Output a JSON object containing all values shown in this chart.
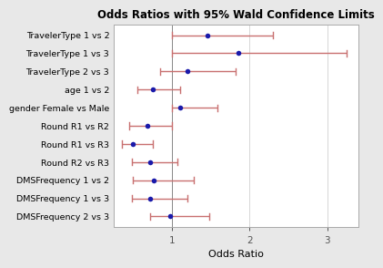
{
  "title": "Odds Ratios with 95% Wald Confidence Limits",
  "xlabel": "Odds Ratio",
  "labels": [
    "TravelerType 1 vs 2",
    "TravelerType 1 vs 3",
    "TravelerType 2 vs 3",
    "age 1 vs 2",
    "gender Female vs Male",
    "Round R1 vs R2",
    "Round R1 vs R3",
    "Round R2 vs R3",
    "DMSFrequency 1 vs 2",
    "DMSFrequency 1 vs 3",
    "DMSFrequency 2 vs 3"
  ],
  "or_values": [
    1.45,
    1.85,
    1.2,
    0.75,
    1.1,
    0.68,
    0.5,
    0.72,
    0.77,
    0.72,
    0.98
  ],
  "ci_low": [
    1.0,
    1.0,
    0.85,
    0.55,
    1.0,
    0.45,
    0.35,
    0.48,
    0.5,
    0.48,
    0.72
  ],
  "ci_high": [
    2.3,
    3.25,
    1.82,
    1.1,
    1.58,
    1.0,
    0.75,
    1.07,
    1.28,
    1.2,
    1.48
  ],
  "dot_color": "#1a1aaa",
  "line_color": "#c87070",
  "bg_color": "#e8e8e8",
  "plot_bg_color": "#FFFFFF",
  "grid_color": "#d0d0d0",
  "vline_color": "#888888",
  "xlim": [
    0.25,
    3.4
  ],
  "xticks": [
    1,
    2,
    3
  ],
  "title_fontsize": 8.5,
  "label_fontsize": 6.8,
  "tick_fontsize": 7.5,
  "xlabel_fontsize": 8,
  "figsize": [
    4.2,
    3.01
  ],
  "dpi": 100
}
